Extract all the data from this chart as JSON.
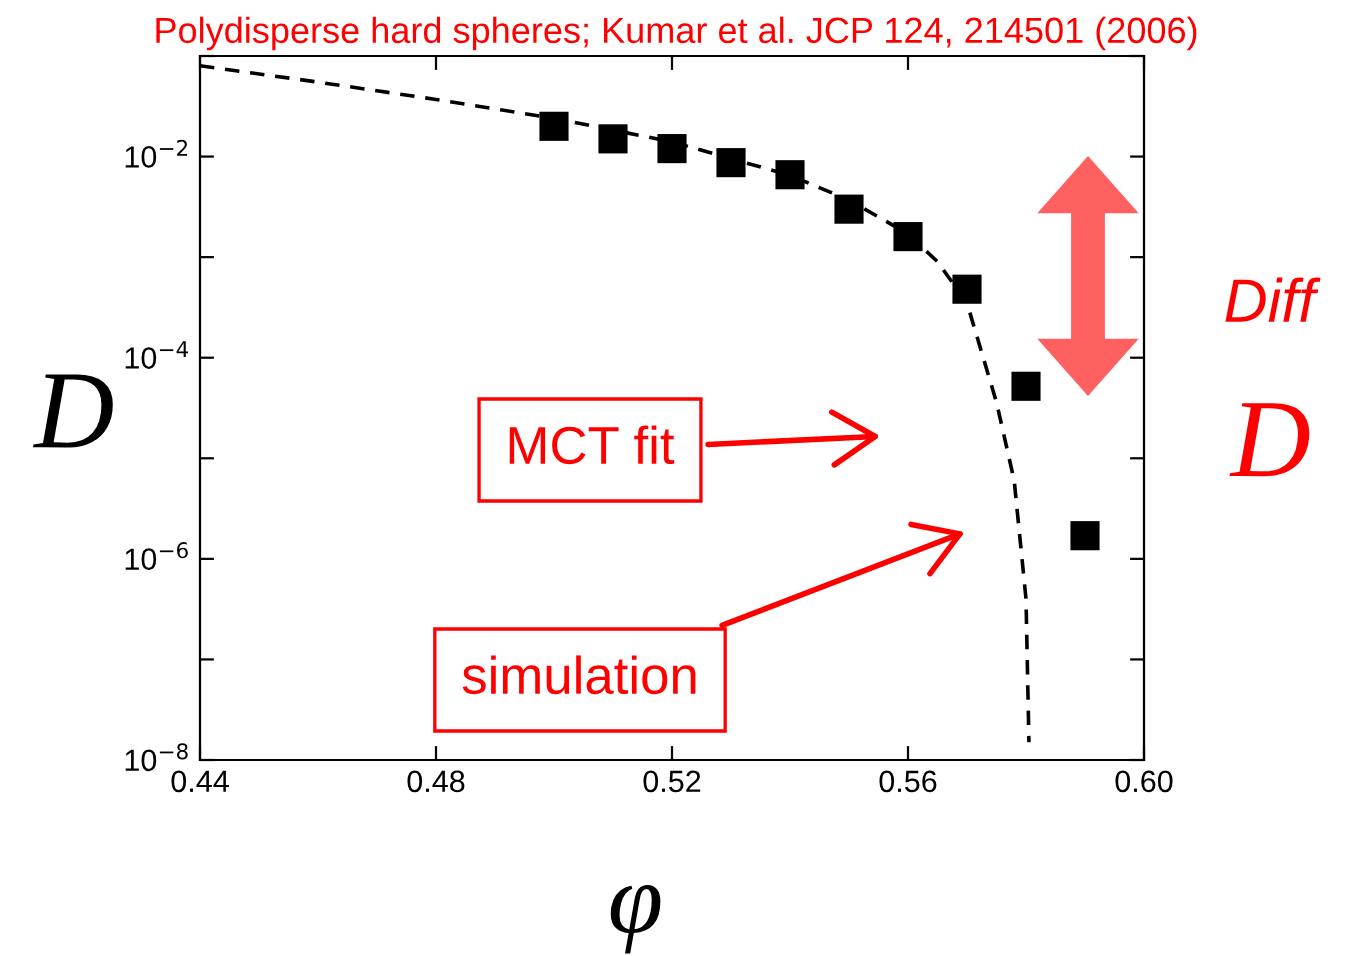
{
  "chart_data": {
    "type": "scatter",
    "title": "Polydisperse hard spheres; Kumar et al. JCP 124, 214501 (2006)",
    "xlabel": "φ",
    "ylabel": "D",
    "log": "y",
    "xlim": [
      0.44,
      0.6
    ],
    "xticks": [
      {
        "value": 0.44,
        "label": "0.44"
      },
      {
        "value": 0.48,
        "label": "0.48"
      },
      {
        "value": 0.52,
        "label": "0.52"
      },
      {
        "value": 0.56,
        "label": "0.56"
      },
      {
        "value": 0.6,
        "label": "0.60"
      }
    ],
    "ylim": [
      1e-08,
      0.1
    ],
    "yticks": [
      {
        "value": 1e-08,
        "label": "10$^{−8}$"
      },
      {
        "value": 1e-07,
        "label": null
      },
      {
        "value": 1e-06,
        "label": "10$^{−6}$"
      },
      {
        "value": 1e-05,
        "label": null
      },
      {
        "value": 0.0001,
        "label": "10$^{−4}$"
      },
      {
        "value": 0.001,
        "label": null
      },
      {
        "value": 0.01,
        "label": "10$^{−2}$"
      },
      {
        "value": 0.1,
        "label": null
      }
    ],
    "grid": false,
    "legend": false,
    "series": [
      {
        "color": "#000000",
        "marker": "square",
        "x": [
          0.5,
          0.51,
          0.52,
          0.53,
          0.54,
          0.55,
          0.56,
          0.57,
          0.58,
          0.59
        ],
        "values": [
          0.02,
          0.015,
          0.012,
          0.0087,
          0.0066,
          0.003,
          0.0016,
          0.00048,
          5.2e-05,
          1.7e-06
        ]
      },
      {
        "type": "line",
        "color": "#000000",
        "line_style": "dashed",
        "marker": "none",
        "x": [
          0.44,
          0.46,
          0.48,
          0.5,
          0.52,
          0.54,
          0.55,
          0.56,
          0.565,
          0.57,
          0.575,
          0.578,
          0.58,
          0.5805
        ],
        "values": [
          0.08,
          0.055,
          0.037,
          0.024,
          0.014,
          0.0065,
          0.0037,
          0.0017,
          0.0009,
          0.00035,
          3.6e-05,
          6e-06,
          4e-07,
          1.5e-08
        ]
      }
    ],
    "annotations": [
      "MCT fit",
      "simulation",
      "Diff",
      "D"
    ]
  }
}
